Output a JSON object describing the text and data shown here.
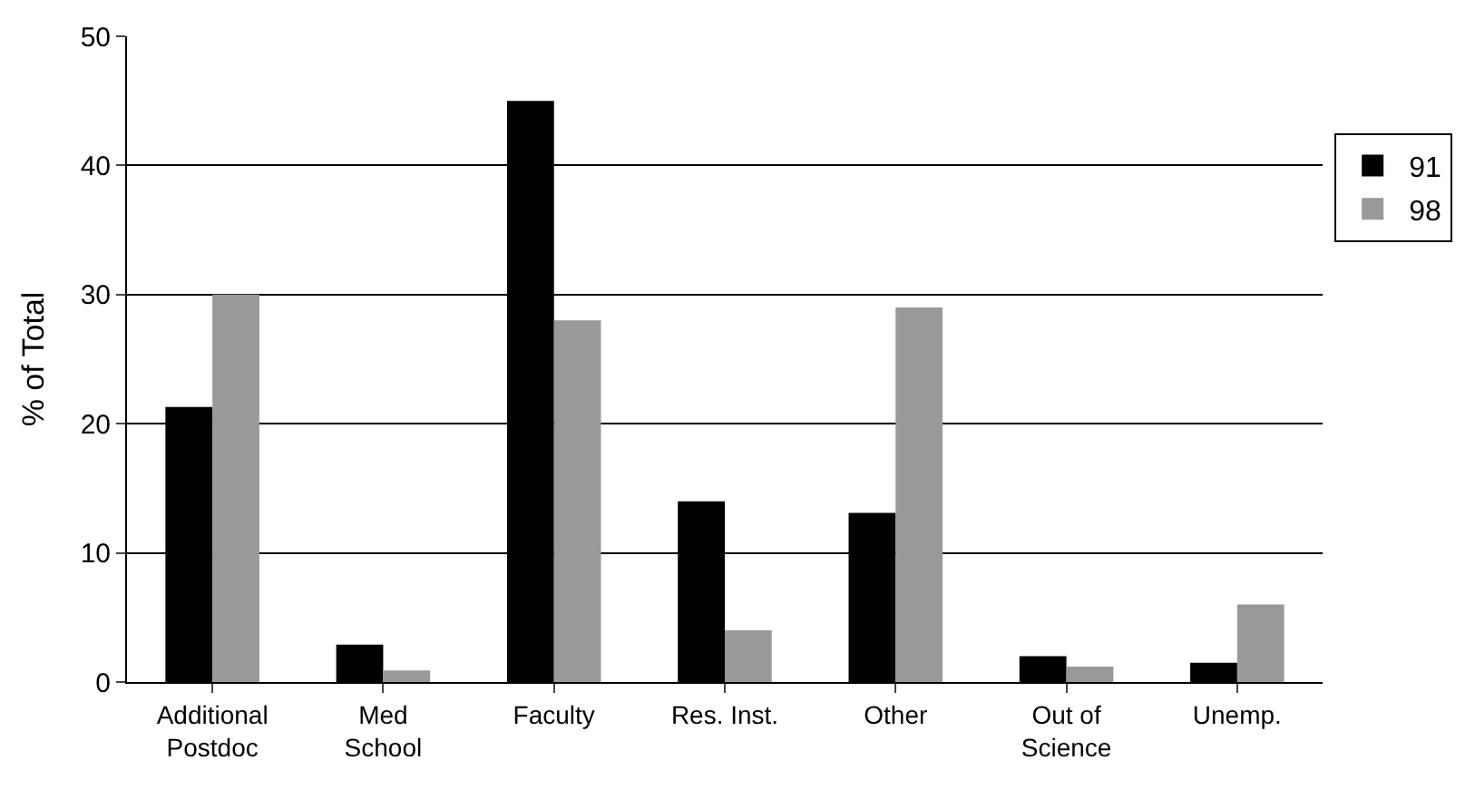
{
  "chart_data": {
    "type": "bar",
    "ylabel": "% of Total",
    "categories": [
      "Additional\nPostdoc",
      "Med\nSchool",
      "Faculty",
      "Res. Inst.",
      "Other",
      "Out of\nScience",
      "Unemp."
    ],
    "series": [
      {
        "name": "91",
        "color": "#000000",
        "values": [
          21.3,
          2.9,
          45,
          14,
          13.1,
          2,
          1.5
        ]
      },
      {
        "name": "98",
        "color": "#999999",
        "values": [
          30,
          0.9,
          28,
          4,
          29,
          1.2,
          6
        ]
      }
    ],
    "ylim": [
      0,
      50
    ],
    "yticks": [
      0,
      10,
      20,
      30,
      40,
      50
    ],
    "grid": "y",
    "legend": "right"
  }
}
